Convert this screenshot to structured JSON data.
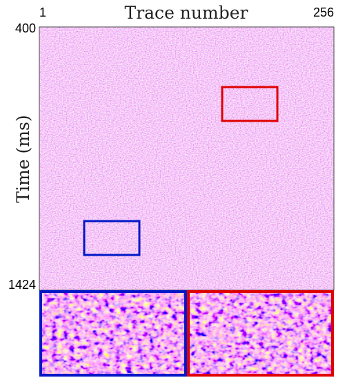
{
  "chart_data": {
    "type": "image",
    "title": "Trace number",
    "y_label": "Time (ms)",
    "xlim": [
      1,
      256
    ],
    "xticks": [
      1,
      256
    ],
    "ylim": [
      1424,
      400
    ],
    "yticks": [
      400,
      1424
    ]
  }
}
